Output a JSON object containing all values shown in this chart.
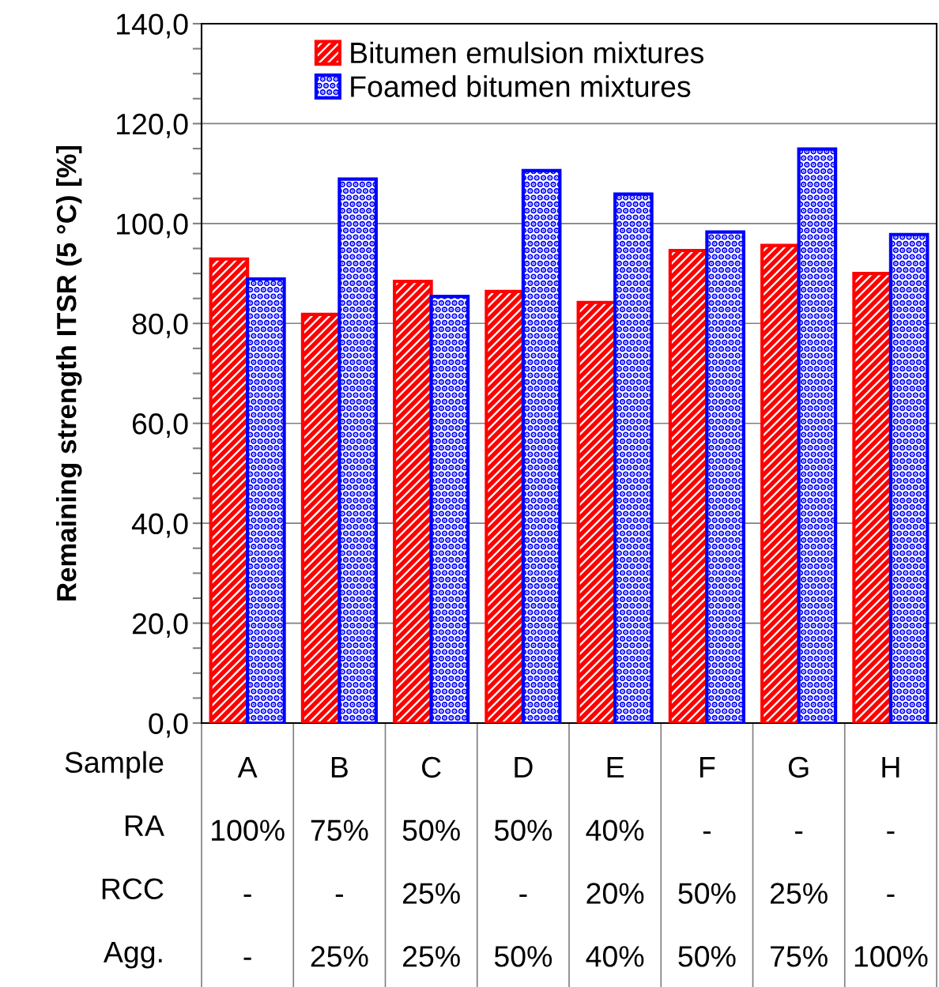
{
  "chart_data": {
    "type": "bar",
    "ylabel": "Remaining strength ITSR (5 °C) [%]",
    "categories": [
      "A\n100%\n-\n-",
      "B\n75%\n-\n25%",
      "C\n50%\n25%\n25%",
      "D\n50%\n-\n50%",
      "E\n40%\n20%\n40%",
      "F\n-\n50%\n50%",
      "G\n-\n25%\n75%",
      "H\n-\n-\n100%"
    ],
    "series": [
      {
        "name": "Bitumen emulsion mixtures",
        "color": "#ff0000",
        "values": [
          92.9,
          81.8,
          88.4,
          86.4,
          84.2,
          94.6,
          95.6,
          90.0
        ]
      },
      {
        "name": "Foamed bitumen mixtures",
        "color": "#0000ff",
        "values": [
          88.9,
          108.9,
          85.4,
          110.6,
          105.9,
          98.3,
          114.9,
          97.8
        ]
      }
    ],
    "ylim": [
      0,
      140
    ],
    "yticks": [
      {
        "value": 0,
        "label": "0,0"
      },
      {
        "value": 5,
        "label": null
      },
      {
        "value": 10,
        "label": null
      },
      {
        "value": 15,
        "label": null
      },
      {
        "value": 20,
        "label": "20,0"
      },
      {
        "value": 25,
        "label": null
      },
      {
        "value": 30,
        "label": null
      },
      {
        "value": 35,
        "label": null
      },
      {
        "value": 40,
        "label": "40,0"
      },
      {
        "value": 45,
        "label": null
      },
      {
        "value": 50,
        "label": null
      },
      {
        "value": 55,
        "label": null
      },
      {
        "value": 60,
        "label": "60,0"
      },
      {
        "value": 65,
        "label": null
      },
      {
        "value": 70,
        "label": null
      },
      {
        "value": 75,
        "label": null
      },
      {
        "value": 80,
        "label": "80,0"
      },
      {
        "value": 85,
        "label": null
      },
      {
        "value": 90,
        "label": null
      },
      {
        "value": 95,
        "label": null
      },
      {
        "value": 100,
        "label": "100,0"
      },
      {
        "value": 105,
        "label": null
      },
      {
        "value": 110,
        "label": null
      },
      {
        "value": 115,
        "label": null
      },
      {
        "value": 120,
        "label": "120,0"
      },
      {
        "value": 125,
        "label": null
      },
      {
        "value": 130,
        "label": null
      },
      {
        "value": 135,
        "label": null
      },
      {
        "value": 140,
        "label": "140,0"
      }
    ],
    "annotations": [
      "Sample",
      "RA",
      "RCC",
      "Agg."
    ],
    "grid": "y",
    "legend": "top"
  }
}
